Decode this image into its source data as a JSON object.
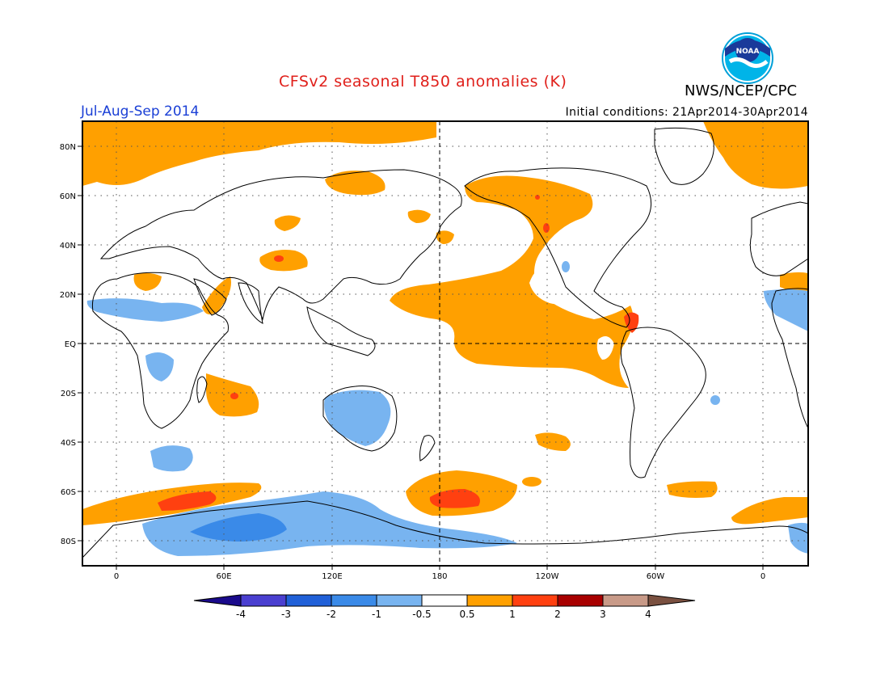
{
  "header": {
    "title": "CFSv2 seasonal T850 anomalies (K)",
    "org": "NWS/NCEP/CPC",
    "period": "Jul-Aug-Sep 2014",
    "initial_conditions": "Initial conditions: 21Apr2014-30Apr2014",
    "logo_text": "NOAA"
  },
  "axes": {
    "lat_labels": [
      "80N",
      "60N",
      "40N",
      "20N",
      "EQ",
      "20S",
      "40S",
      "60S",
      "80S"
    ],
    "lon_labels": [
      "0",
      "60E",
      "120E",
      "180",
      "120W",
      "60W",
      "0"
    ]
  },
  "colorbar": {
    "labels": [
      "-4",
      "-3",
      "-2",
      "-1",
      "-0.5",
      "0.5",
      "1",
      "2",
      "3",
      "4"
    ],
    "colors": [
      "#1a0a8c",
      "#4a3fd0",
      "#2060d8",
      "#3a8ae8",
      "#78b4f0",
      "#ffffff",
      "#ffa000",
      "#ff4010",
      "#a80000",
      "#c89a88",
      "#7a5040"
    ]
  },
  "colors": {
    "warm": "#ffa000",
    "hot": "#ff4010",
    "cool": "#78b4f0",
    "cooler": "#3a8ae8"
  }
}
